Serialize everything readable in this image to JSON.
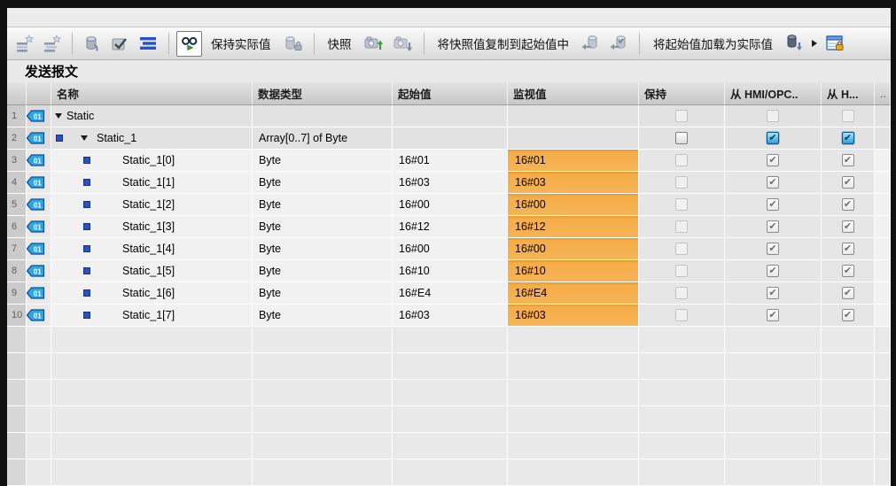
{
  "page": {
    "title": "发送报文"
  },
  "toolbar": {
    "keep_actual": "保持实际值",
    "snapshot": "快照",
    "copy_snapshot": "将快照值复制到起始值中",
    "load_start": "将起始值加载为实际值"
  },
  "table": {
    "columns": [
      "名称",
      "数据类型",
      "起始值",
      "监视值",
      "保持",
      "从 HMI/OPC..",
      "从 H...",
      ".."
    ],
    "rows": [
      {
        "num": "1",
        "name": "Static",
        "indent": 0,
        "expander": true,
        "bullet": false,
        "type": "",
        "start": "",
        "monitor": "",
        "monitor_orange": false,
        "retain": "disabled",
        "hmi": "disabled",
        "h": "disabled",
        "shade": "dark"
      },
      {
        "num": "2",
        "name": "Static_1",
        "indent": 1,
        "expander": true,
        "bullet": true,
        "type": "Array[0..7] of Byte",
        "start": "",
        "monitor": "",
        "monitor_orange": false,
        "retain": "unchecked",
        "hmi": "checked-blue",
        "h": "checked-blue",
        "shade": "dark"
      },
      {
        "num": "3",
        "name": "Static_1[0]",
        "indent": 2,
        "expander": false,
        "bullet": true,
        "type": "Byte",
        "start": "16#01",
        "monitor": "16#01",
        "monitor_orange": true,
        "retain": "disabled",
        "hmi": "checked-gray",
        "h": "checked-gray",
        "shade": "light"
      },
      {
        "num": "4",
        "name": "Static_1[1]",
        "indent": 2,
        "expander": false,
        "bullet": true,
        "type": "Byte",
        "start": "16#03",
        "monitor": "16#03",
        "monitor_orange": true,
        "retain": "disabled",
        "hmi": "checked-gray",
        "h": "checked-gray",
        "shade": "light"
      },
      {
        "num": "5",
        "name": "Static_1[2]",
        "indent": 2,
        "expander": false,
        "bullet": true,
        "type": "Byte",
        "start": "16#00",
        "monitor": "16#00",
        "monitor_orange": true,
        "retain": "disabled",
        "hmi": "checked-gray",
        "h": "checked-gray",
        "shade": "light"
      },
      {
        "num": "6",
        "name": "Static_1[3]",
        "indent": 2,
        "expander": false,
        "bullet": true,
        "type": "Byte",
        "start": "16#12",
        "monitor": "16#12",
        "monitor_orange": true,
        "retain": "disabled",
        "hmi": "checked-gray",
        "h": "checked-gray",
        "shade": "light"
      },
      {
        "num": "7",
        "name": "Static_1[4]",
        "indent": 2,
        "expander": false,
        "bullet": true,
        "type": "Byte",
        "start": "16#00",
        "monitor": "16#00",
        "monitor_orange": true,
        "retain": "disabled",
        "hmi": "checked-gray",
        "h": "checked-gray",
        "shade": "light"
      },
      {
        "num": "8",
        "name": "Static_1[5]",
        "indent": 2,
        "expander": false,
        "bullet": true,
        "type": "Byte",
        "start": "16#10",
        "monitor": "16#10",
        "monitor_orange": true,
        "retain": "disabled",
        "hmi": "checked-gray",
        "h": "checked-gray",
        "shade": "light"
      },
      {
        "num": "9",
        "name": "Static_1[6]",
        "indent": 2,
        "expander": false,
        "bullet": true,
        "type": "Byte",
        "start": "16#E4",
        "monitor": "16#E4",
        "monitor_orange": true,
        "retain": "disabled",
        "hmi": "checked-gray",
        "h": "checked-gray",
        "shade": "light"
      },
      {
        "num": "10",
        "name": "Static_1[7]",
        "indent": 2,
        "expander": false,
        "bullet": true,
        "type": "Byte",
        "start": "16#03",
        "monitor": "16#03",
        "monitor_orange": true,
        "retain": "disabled",
        "hmi": "checked-gray",
        "h": "checked-gray",
        "shade": "light"
      }
    ],
    "empty_row_count": 6
  },
  "icons": {
    "row_tag_label": "01"
  },
  "colors": {
    "monitor_highlight": "#f5ad47",
    "checkbox_checked_blue": "#2f9fd8",
    "monitor_button_border": "#3f86c8",
    "tag_icon_blue": "#2ba7e8"
  }
}
